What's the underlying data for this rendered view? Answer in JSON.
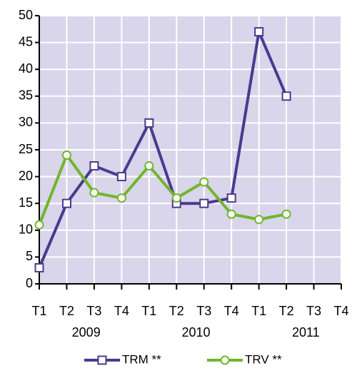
{
  "chart_data": {
    "type": "line",
    "categories": [
      "T1",
      "T2",
      "T3",
      "T4",
      "T1",
      "T2",
      "T3",
      "T4",
      "T1",
      "T2",
      "T3",
      "T4"
    ],
    "year_groups": [
      "2009",
      "2010",
      "2011"
    ],
    "series": [
      {
        "name": "TRM **",
        "color": "#4a3a8f",
        "marker": "square",
        "values": [
          3,
          15,
          22,
          20,
          30,
          15,
          15,
          16,
          47,
          35,
          null,
          null
        ]
      },
      {
        "name": "TRV **",
        "color": "#72b52e",
        "marker": "circle",
        "values": [
          11,
          24,
          17,
          16,
          22,
          16,
          19,
          13,
          12,
          13,
          null,
          null
        ]
      }
    ],
    "ylim": [
      0,
      50
    ],
    "yticks": [
      0,
      5,
      10,
      15,
      20,
      25,
      30,
      35,
      40,
      45,
      50
    ],
    "grid": true
  }
}
